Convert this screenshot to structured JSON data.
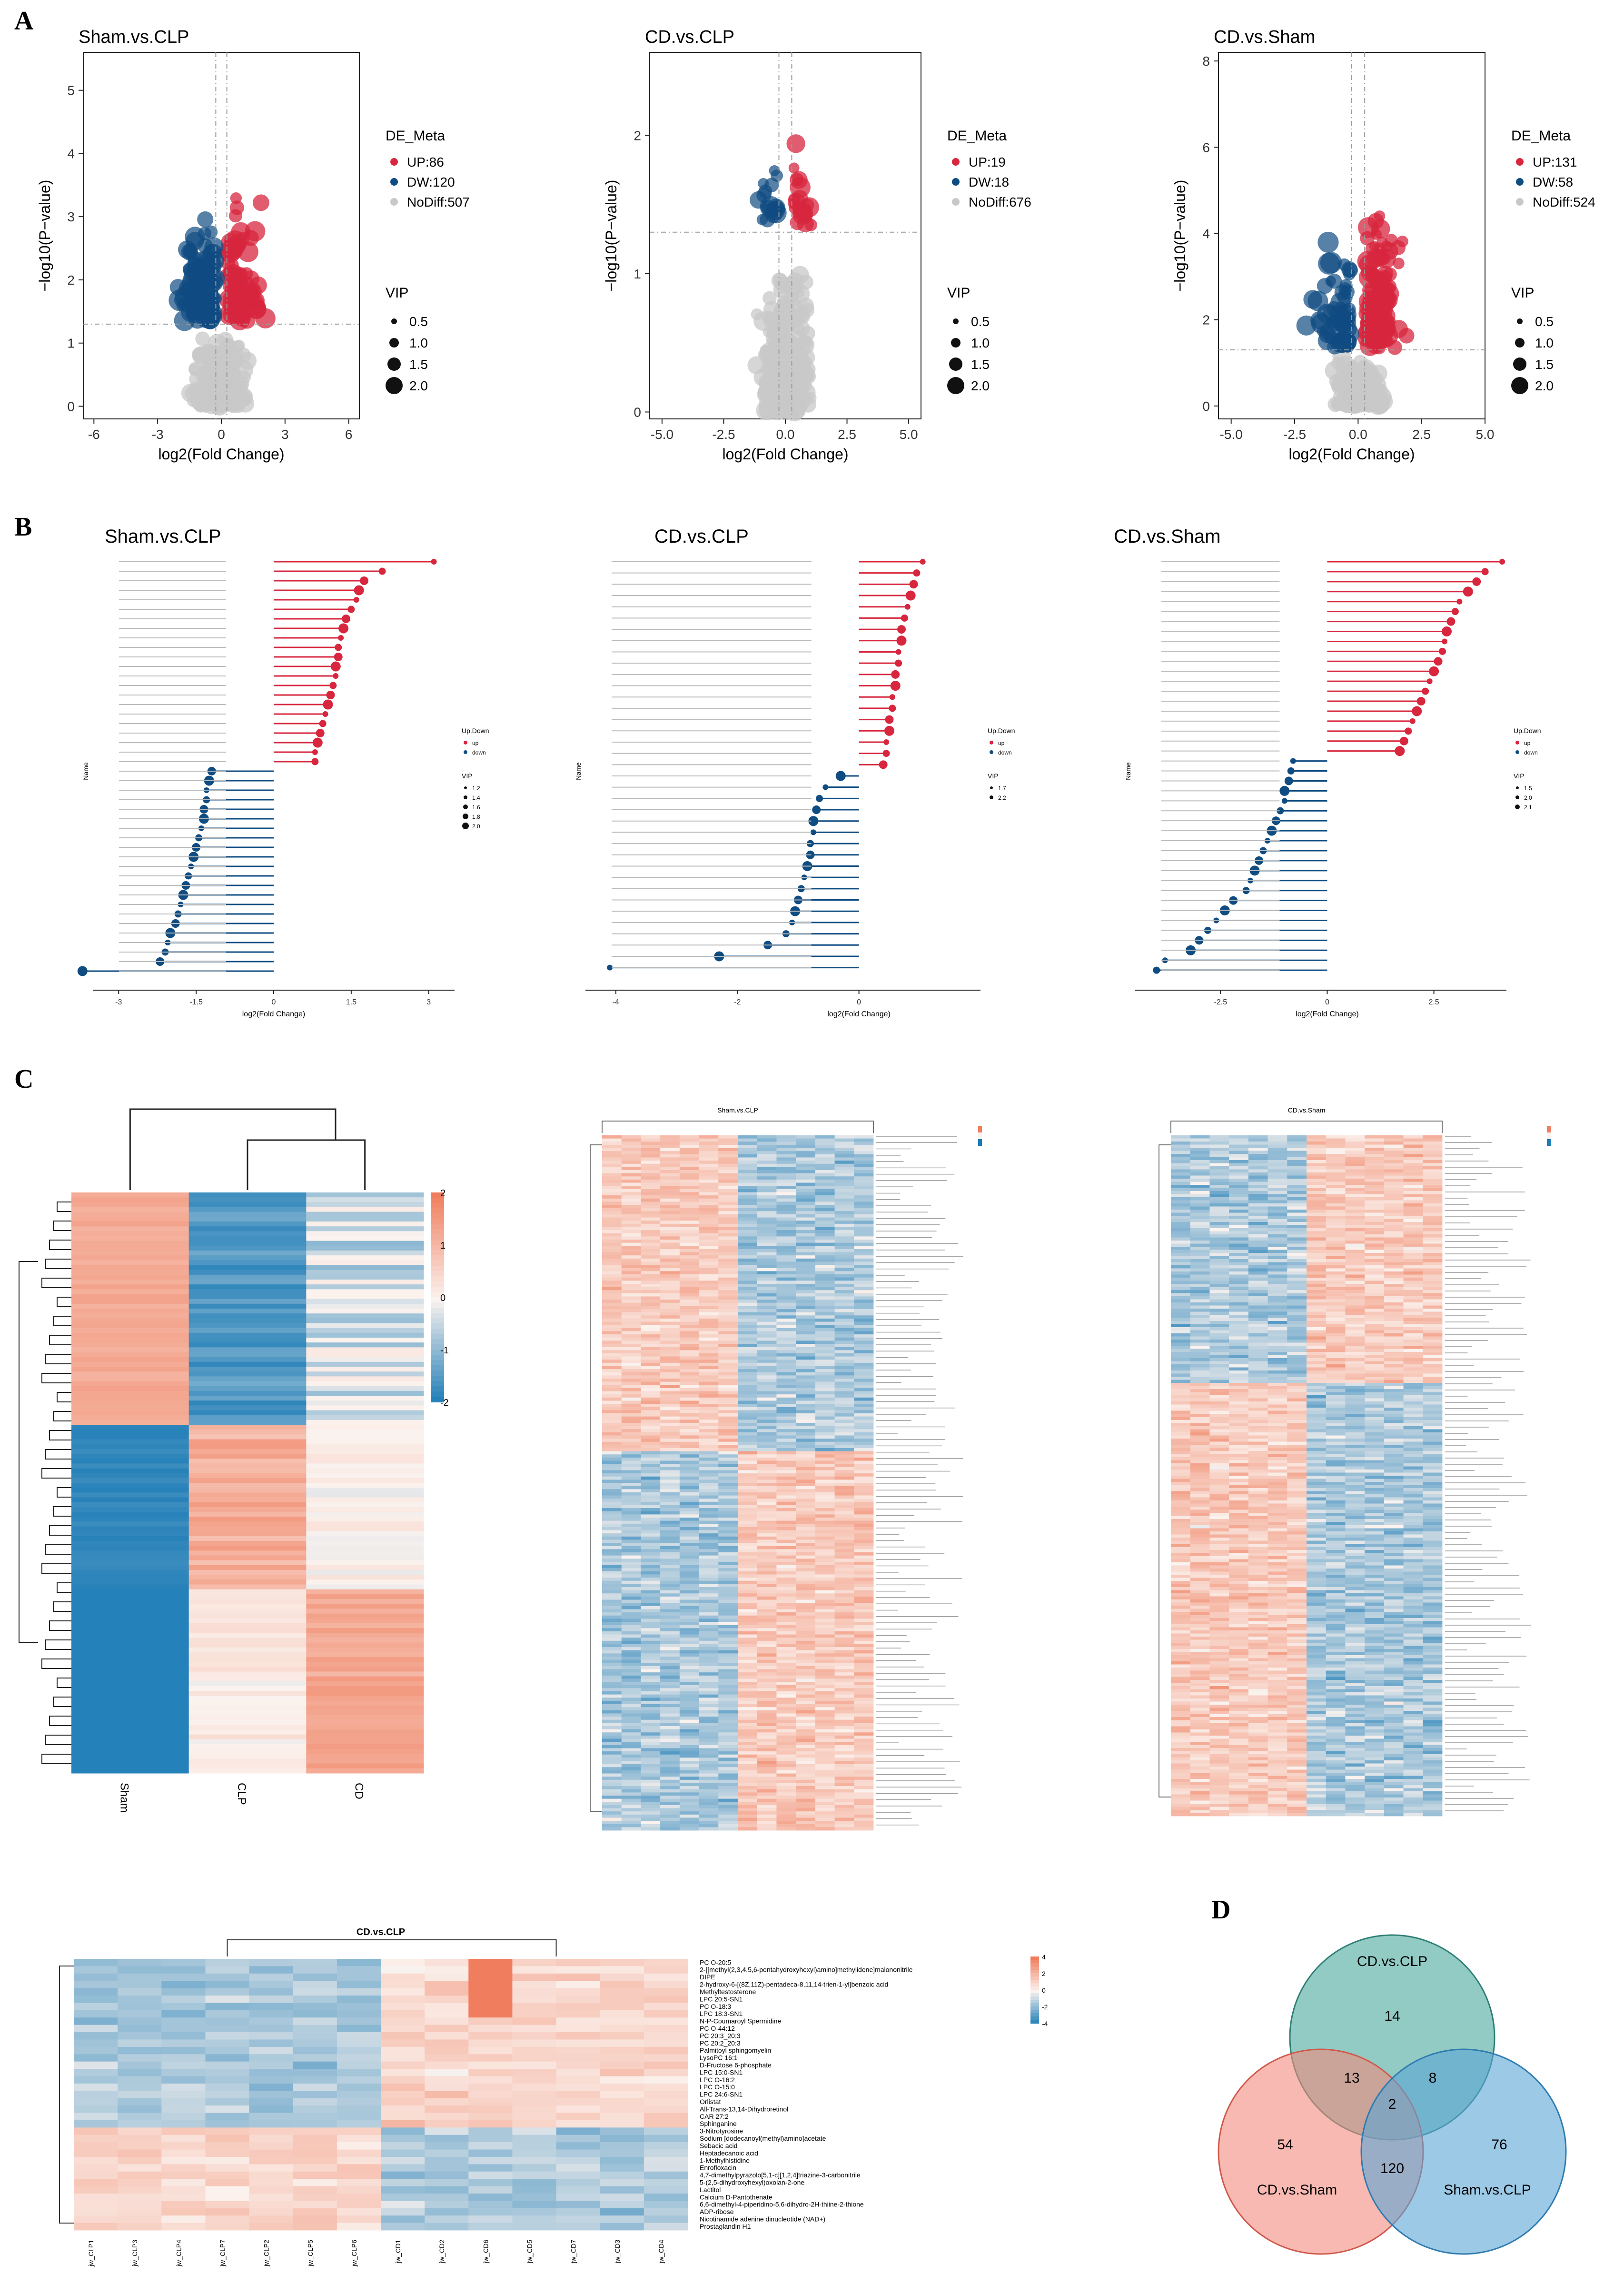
{
  "panel_letters": [
    "A",
    "B",
    "C",
    "D"
  ],
  "colors": {
    "up": "#d7263d",
    "down": "#0f4c81",
    "nodiff": "#c8c8c8",
    "heat_low": "#1a7bb6",
    "heat_mid": "#fbf3ef",
    "heat_high": "#f07e5e",
    "venn_a": "#4aa89c",
    "venn_b": "#f28b7d",
    "venn_c": "#5aa5d6"
  },
  "panel_A": {
    "legend_title": "DE_Meta",
    "size_title": "VIP",
    "size_levels": [
      "0.5",
      "1.0",
      "1.5",
      "2.0"
    ],
    "xlabel": "log2(Fold Change)",
    "ylabel": "−log10(P−value)"
  },
  "panel_B": {
    "xlabel": "log2(Fold Change)",
    "ylabel": "Name",
    "legend_title": "Up.Down",
    "legend_items": [
      "up",
      "down"
    ],
    "size_title": "VIP"
  },
  "panel_C": {
    "scale_ticks": [
      "2",
      "1",
      "0",
      "-1",
      "-2"
    ],
    "group_labels": [
      "Sham",
      "CLP",
      "CD"
    ],
    "small_titles": [
      "Sham.vs.CLP",
      "CD.vs.Sham"
    ],
    "cdclp_title": "CD.vs.CLP",
    "cdclp_scale_ticks": [
      "4",
      "2",
      "0",
      "-2",
      "-4"
    ],
    "cdclp_metabolites": [
      "PC O-20:5",
      "2-[[methyl(2,3,4,5,6-pentahydroxyhexyl)amino]methylidene]malononitrile",
      "DIPE",
      "2-hydroxy-6-[(8Z,11Z)-pentadeca-8,11,14-trien-1-yl]benzoic acid",
      "Methyltestosterone",
      "LPC 20:5-SN1",
      "PC O-18:3",
      "LPC 18:3-SN1",
      "N-P-Coumaroyl Spermidine",
      "PC O-44:12",
      "PC 20:3_20:3",
      "PC 20:2_20:3",
      "Palmitoyl sphingomyelin",
      "LysoPC 16:1",
      "D-Fructose 6-phosphate",
      "LPC 15:0-SN1",
      "LPC O-16:2",
      "LPC O-15:0",
      "LPC 24:6-SN1",
      "Orlistat",
      "All-Trans-13,14-Dihydroretinol",
      "CAR 27:2",
      "Sphinganine",
      "3-Nitrotyrosine",
      "Sodium [dodecanoyl(methyl)amino]acetate",
      "Sebacic acid",
      "Heptadecanoic acid",
      "1-Methylhistidine",
      "Enrofloxacin",
      "4,7-dimethylpyrazolo[5,1-c][1,2,4]triazine-3-carbonitrile",
      "5-(2,5-dihydroxyhexyl)oxolan-2-one",
      "Lactitol",
      "Calcium D-Pantothenate",
      "6,6-dimethyl-4-piperidino-5,6-dihydro-2H-thiine-2-thione",
      "ADP-ribose",
      "Nicotinamide adenine dinucleotide (NAD+)",
      "Prostaglandin H1"
    ],
    "cdclp_samples": [
      "jw_CLP1",
      "jw_CLP3",
      "jw_CLP4",
      "jw_CLP7",
      "jw_CLP2",
      "jw_CLP5",
      "jw_CLP6",
      "jw_CD1",
      "jw_CD2",
      "jw_CD6",
      "jw_CD5",
      "jw_CD7",
      "jw_CD3",
      "jw_CD4"
    ]
  },
  "panel_D": {
    "labels": [
      "CD.vs.CLP",
      "CD.vs.Sham",
      "Sham.vs.CLP"
    ],
    "counts": {
      "cdclp_only": "14",
      "sham_only": "54",
      "shamclp_only": "76",
      "cdclp_sham": "13",
      "cdclp_shamclp": "8",
      "sham_shamclp": "120",
      "all": "2"
    }
  },
  "chart_data": [
    {
      "id": "A1",
      "type": "scatter",
      "title": "Sham.vs.CLP",
      "xlabel": "log2(Fold Change)",
      "ylabel": "−log10(P−value)",
      "xlim": [
        -6.5,
        6.5
      ],
      "ylim": [
        -0.2,
        5.6
      ],
      "xticks": [
        -6,
        -3,
        0,
        3,
        6
      ],
      "yticks": [
        0,
        1,
        2,
        3,
        4,
        5
      ],
      "threshold_x": [
        -0.26,
        0.26
      ],
      "threshold_y": 1.3,
      "legend": [
        "UP:86",
        "DW:120",
        "NoDiff:507"
      ],
      "counts": [
        86,
        120,
        507
      ]
    },
    {
      "id": "A2",
      "type": "scatter",
      "title": "CD.vs.CLP",
      "xlabel": "log2(Fold Change)",
      "ylabel": "−log10(P−value)",
      "xlim": [
        -5.5,
        5.5
      ],
      "ylim": [
        -0.05,
        2.6
      ],
      "xticks": [
        -5.0,
        -2.5,
        0.0,
        2.5,
        5.0
      ],
      "yticks": [
        0,
        1,
        2
      ],
      "threshold_x": [
        -0.26,
        0.26
      ],
      "threshold_y": 1.3,
      "legend": [
        "UP:19",
        "DW:18",
        "NoDiff:676"
      ],
      "counts": [
        19,
        18,
        676
      ]
    },
    {
      "id": "A3",
      "type": "scatter",
      "title": "CD.vs.Sham",
      "xlabel": "log2(Fold Change)",
      "ylabel": "−log10(P−value)",
      "xlim": [
        -5.5,
        5.0
      ],
      "ylim": [
        -0.3,
        8.2
      ],
      "xticks": [
        -5.0,
        -2.5,
        0.0,
        2.5,
        5.0
      ],
      "yticks": [
        0,
        2,
        4,
        6,
        8
      ],
      "threshold_x": [
        -0.26,
        0.26
      ],
      "threshold_y": 1.3,
      "legend": [
        "UP:131",
        "DW:58",
        "NoDiff:524"
      ],
      "counts": [
        131,
        58,
        524
      ]
    },
    {
      "id": "B1",
      "type": "lollipop",
      "title": "Sham.vs.CLP",
      "xlim": [
        -3.5,
        3.5
      ],
      "xticks": [
        -3.0,
        -1.5,
        0.0,
        1.5,
        3.0
      ],
      "up_values": [
        3.1,
        2.1,
        1.75,
        1.65,
        1.6,
        1.5,
        1.4,
        1.35,
        1.3,
        1.25,
        1.25,
        1.2,
        1.2,
        1.15,
        1.1,
        1.05,
        1.0,
        0.95,
        0.9,
        0.85,
        0.8,
        0.8
      ],
      "down_values": [
        -1.2,
        -1.25,
        -1.3,
        -1.3,
        -1.35,
        -1.35,
        -1.4,
        -1.45,
        -1.5,
        -1.55,
        -1.6,
        -1.65,
        -1.7,
        -1.75,
        -1.8,
        -1.85,
        -1.9,
        -2.0,
        -2.05,
        -2.1,
        -2.2,
        -3.7
      ],
      "size_levels": [
        "1.2",
        "1.4",
        "1.6",
        "1.8",
        "2.0"
      ]
    },
    {
      "id": "B2",
      "type": "lollipop",
      "title": "CD.vs.CLP",
      "xlim": [
        -4.5,
        2.0
      ],
      "xticks": [
        -4,
        -2,
        0
      ],
      "up_values": [
        1.05,
        0.95,
        0.9,
        0.85,
        0.8,
        0.75,
        0.7,
        0.7,
        0.65,
        0.65,
        0.6,
        0.6,
        0.55,
        0.55,
        0.5,
        0.5,
        0.45,
        0.45,
        0.4
      ],
      "down_values": [
        -0.3,
        -0.55,
        -0.65,
        -0.7,
        -0.75,
        -0.75,
        -0.8,
        -0.8,
        -0.85,
        -0.9,
        -0.95,
        -1.0,
        -1.05,
        -1.1,
        -1.2,
        -1.5,
        -2.3,
        -4.1
      ],
      "size_levels": [
        "1.7",
        "2.2"
      ]
    },
    {
      "id": "B3",
      "type": "lollipop",
      "title": "CD.vs.Sham",
      "xlim": [
        -4.5,
        4.2
      ],
      "xticks": [
        -2.5,
        0.0,
        2.5
      ],
      "up_values": [
        4.1,
        3.7,
        3.5,
        3.3,
        3.1,
        3.0,
        2.9,
        2.8,
        2.75,
        2.7,
        2.6,
        2.5,
        2.4,
        2.3,
        2.2,
        2.1,
        2.0,
        1.9,
        1.8,
        1.7
      ],
      "down_values": [
        -0.8,
        -0.85,
        -0.9,
        -1.0,
        -1.0,
        -1.1,
        -1.2,
        -1.3,
        -1.4,
        -1.5,
        -1.6,
        -1.7,
        -1.8,
        -1.9,
        -2.2,
        -2.4,
        -2.6,
        -2.8,
        -3.0,
        -3.2,
        -3.8,
        -4.0
      ],
      "size_levels": [
        "1.5",
        "2.0",
        "2.1"
      ]
    }
  ]
}
